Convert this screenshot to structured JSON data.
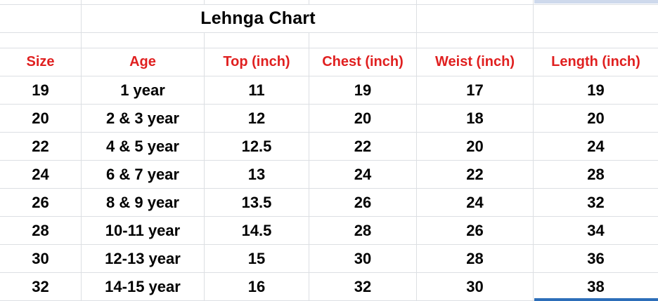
{
  "sheet": {
    "title": "Lehnga Chart"
  },
  "colors": {
    "header_text": "#e02020",
    "gridline": "#dcdfe3",
    "selection_border": "#2d6eb9",
    "selection_fill": "#ced9ec",
    "text": "#000000",
    "background": "#ffffff"
  },
  "chart_data": {
    "type": "table",
    "title": "Lehnga Chart",
    "categories": [
      "Size",
      "Age",
      "Top (inch)",
      "Chest (inch)",
      "Weist (inch)",
      "Length (inch)"
    ],
    "series": [
      {
        "name": "Size",
        "values": [
          19,
          20,
          22,
          24,
          26,
          28,
          30,
          32
        ]
      },
      {
        "name": "Age",
        "values": [
          "1 year",
          "2 & 3 year",
          "4 & 5 year",
          "6 & 7 year",
          "8 & 9 year",
          "10-11 year",
          "12-13 year",
          "14-15 year"
        ]
      },
      {
        "name": "Top (inch)",
        "values": [
          11,
          12,
          12.5,
          13,
          13.5,
          14.5,
          15,
          16
        ]
      },
      {
        "name": "Chest (inch)",
        "values": [
          19,
          20,
          22,
          24,
          26,
          28,
          30,
          32
        ]
      },
      {
        "name": "Weist (inch)",
        "values": [
          17,
          18,
          20,
          22,
          24,
          26,
          28,
          30
        ]
      },
      {
        "name": "Length (inch)",
        "values": [
          19,
          20,
          24,
          28,
          32,
          34,
          36,
          38
        ]
      }
    ]
  },
  "table": {
    "columns": [
      "Size",
      "Age",
      "Top (inch)",
      "Chest (inch)",
      "Weist (inch)",
      "Length (inch)"
    ],
    "rows": [
      [
        "19",
        "1 year",
        "11",
        "19",
        "17",
        "19"
      ],
      [
        "20",
        "2 & 3 year",
        "12",
        "20",
        "18",
        "20"
      ],
      [
        "22",
        "4 & 5 year",
        "12.5",
        "22",
        "20",
        "24"
      ],
      [
        "24",
        "6 & 7 year",
        "13",
        "24",
        "22",
        "28"
      ],
      [
        "26",
        "8 & 9 year",
        "13.5",
        "26",
        "24",
        "32"
      ],
      [
        "28",
        "10-11 year",
        "14.5",
        "28",
        "26",
        "34"
      ],
      [
        "30",
        "12-13 year",
        "15",
        "30",
        "28",
        "36"
      ],
      [
        "32",
        "14-15 year",
        "16",
        "32",
        "30",
        "38"
      ]
    ]
  }
}
